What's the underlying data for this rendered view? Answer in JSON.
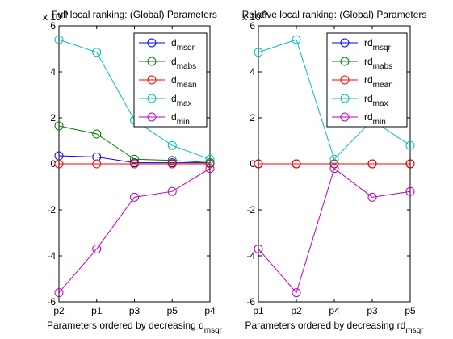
{
  "figure": {
    "background": "#ffffff"
  },
  "chart_data": [
    {
      "type": "line",
      "title": "Full local ranking: (Global) Parameters",
      "xlabel": {
        "main": "Parameters ordered by decreasing d",
        "sub": "msqr"
      },
      "ylabel": "",
      "exponent": {
        "base": "x 10",
        "power": "-5"
      },
      "categories": [
        "p2",
        "p1",
        "p3",
        "p5",
        "p4"
      ],
      "ylim": [
        -6,
        6
      ],
      "yticks": [
        -6,
        -4,
        -2,
        0,
        2,
        4,
        6
      ],
      "legend_position": "top-right",
      "marker": "open-circle",
      "series": [
        {
          "name": "d",
          "sub": "msqr",
          "color": "#0000ff",
          "values": [
            0.35,
            0.3,
            0.05,
            0.05,
            0.05
          ]
        },
        {
          "name": "d",
          "sub": "mabs",
          "color": "#008000",
          "values": [
            1.65,
            1.3,
            0.2,
            0.15,
            0.05
          ]
        },
        {
          "name": "d",
          "sub": "mean",
          "color": "#ff0000",
          "values": [
            0.0,
            0.0,
            0.0,
            0.0,
            0.0
          ]
        },
        {
          "name": "d",
          "sub": "max",
          "color": "#00bfbf",
          "values": [
            5.4,
            4.85,
            1.9,
            0.8,
            0.2
          ]
        },
        {
          "name": "d",
          "sub": "min",
          "color": "#bf00bf",
          "values": [
            -5.6,
            -3.7,
            -1.45,
            -1.2,
            -0.2
          ]
        }
      ]
    },
    {
      "type": "line",
      "title": "Relative local ranking: (Global) Parameters",
      "xlabel": {
        "main": "Parameters ordered by decreasing rd",
        "sub": "msqr"
      },
      "ylabel": "",
      "exponent": {
        "base": "x 10",
        "power": "-5"
      },
      "categories": [
        "p1",
        "p2",
        "p4",
        "p3",
        "p5"
      ],
      "ylim": [
        -6,
        6
      ],
      "yticks": [
        -6,
        -4,
        -2,
        0,
        2,
        4,
        6
      ],
      "legend_position": "top-right",
      "marker": "open-circle",
      "series": [
        {
          "name": "rd",
          "sub": "msqr",
          "color": "#0000ff",
          "values": [
            0.0,
            0.0,
            0.0,
            0.0,
            0.0
          ]
        },
        {
          "name": "rd",
          "sub": "mabs",
          "color": "#008000",
          "values": [
            0.0,
            0.0,
            0.0,
            0.0,
            0.0
          ]
        },
        {
          "name": "rd",
          "sub": "mean",
          "color": "#ff0000",
          "values": [
            0.0,
            0.0,
            0.0,
            0.0,
            0.0
          ]
        },
        {
          "name": "rd",
          "sub": "max",
          "color": "#00bfbf",
          "values": [
            4.85,
            5.4,
            0.2,
            1.9,
            0.8
          ]
        },
        {
          "name": "rd",
          "sub": "min",
          "color": "#bf00bf",
          "values": [
            -3.7,
            -5.6,
            -0.2,
            -1.45,
            -1.2
          ]
        }
      ]
    }
  ]
}
